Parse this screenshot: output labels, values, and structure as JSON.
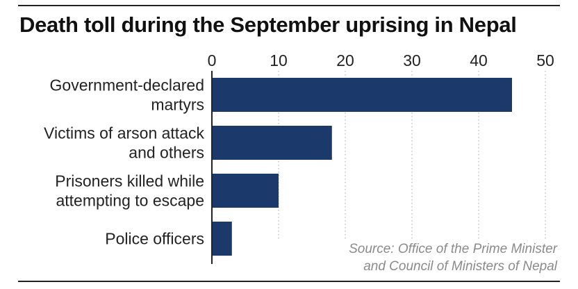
{
  "chart_data": {
    "type": "bar",
    "orientation": "horizontal",
    "title": "Death toll during the September uprising in Nepal",
    "categories": [
      [
        "Government-declared",
        "martyrs"
      ],
      [
        "Victims of arson attack",
        "and others"
      ],
      [
        "Prisoners killed while",
        "attempting to escape"
      ],
      [
        "Police officers"
      ]
    ],
    "values": [
      45,
      18,
      10,
      3
    ],
    "xlim": [
      0,
      50
    ],
    "xticks": [
      0,
      10,
      20,
      30,
      40,
      50
    ],
    "xlabel": "",
    "ylabel": "",
    "grid": true,
    "bar_color": "#1b3a6b",
    "source_lines": [
      "Source: Office of the Prime Minister",
      "and Council of Ministers of Nepal"
    ]
  }
}
